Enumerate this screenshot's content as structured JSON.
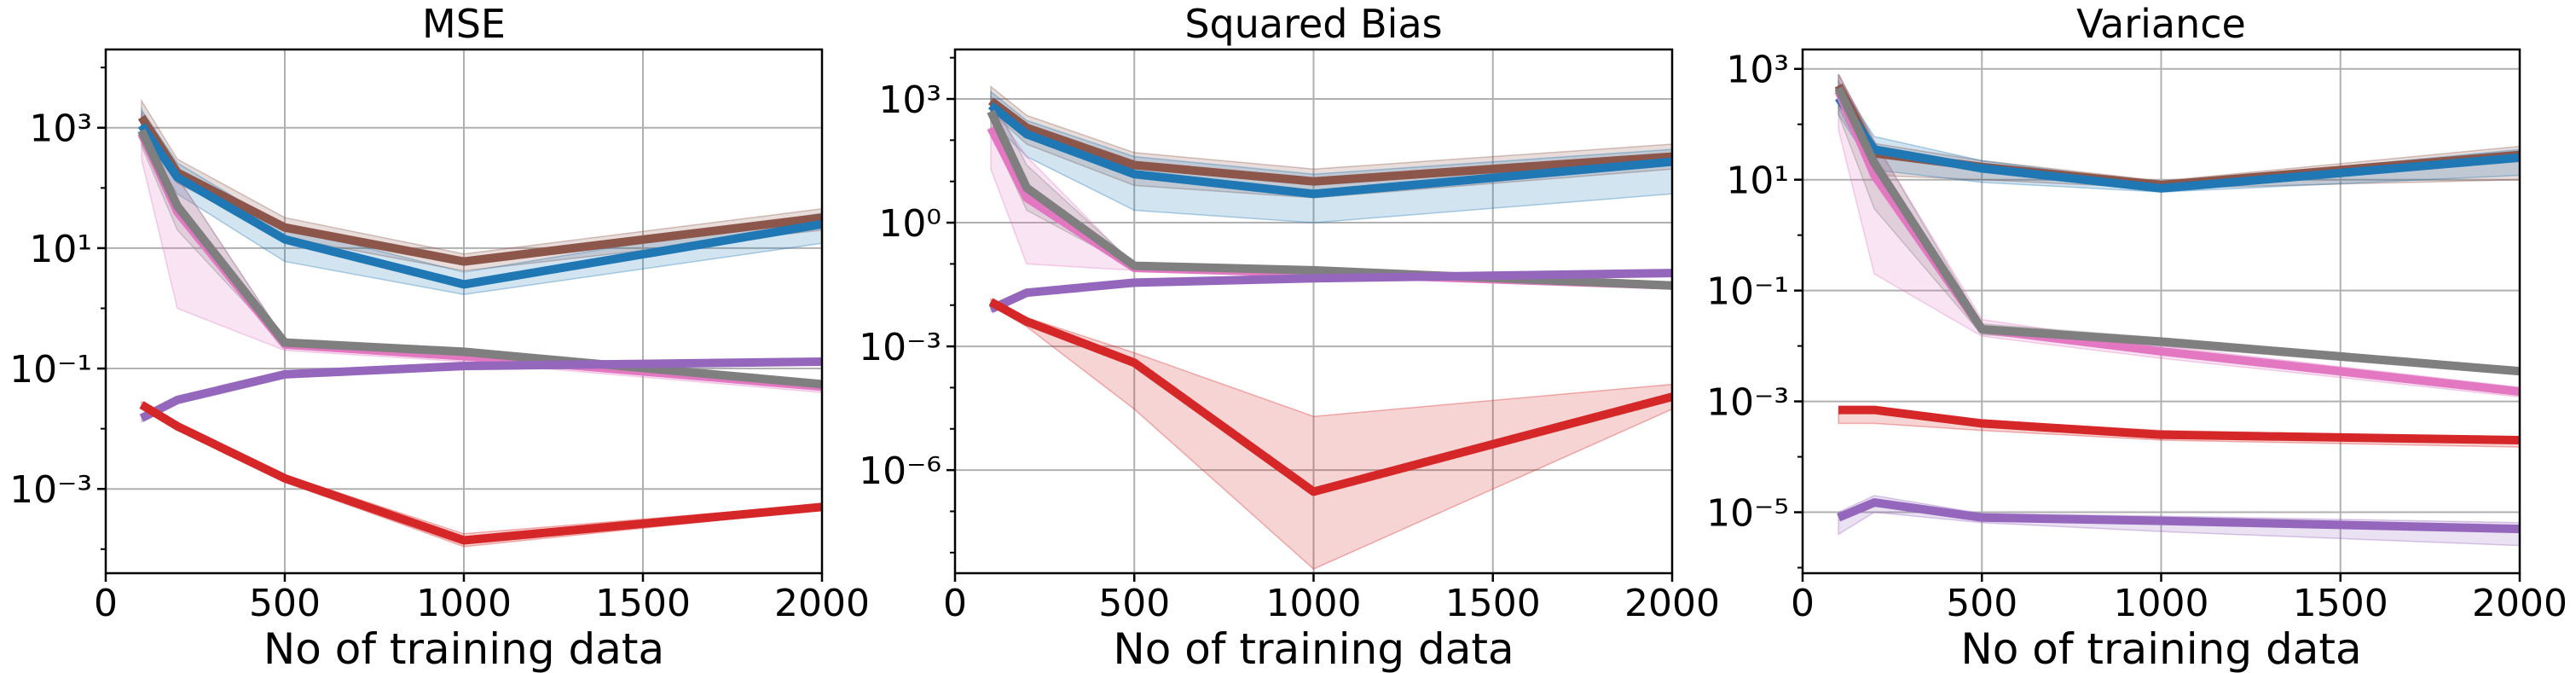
{
  "chart_data": [
    {
      "type": "line",
      "title": "MSE",
      "xlabel": "No of training data",
      "ylabel": "",
      "xlim": [
        0,
        2000
      ],
      "ylim_log10": [
        -4.4,
        4.3
      ],
      "yscale": "log",
      "grid": true,
      "x_ticks": [
        0,
        500,
        1000,
        1500,
        2000
      ],
      "x_tick_labels": [
        "0",
        "500",
        "1000",
        "1500",
        "2000"
      ],
      "y_ticks_log10": [
        -3,
        -1,
        1,
        3
      ],
      "x": [
        100,
        200,
        500,
        1000,
        2000
      ],
      "series": [
        {
          "color": "#8c564b",
          "values": [
            1500,
            180,
            22,
            6,
            32
          ],
          "lower": [
            900,
            120,
            15,
            4.2,
            20
          ],
          "upper": [
            2800,
            300,
            32,
            8,
            45
          ]
        },
        {
          "color": "#1f77b4",
          "values": [
            1100,
            150,
            14,
            2.5,
            25
          ],
          "lower": [
            700,
            80,
            6,
            1.7,
            12
          ],
          "upper": [
            2000,
            260,
            22,
            4,
            38
          ]
        },
        {
          "color": "#e377c2",
          "values": [
            800,
            40,
            0.25,
            0.16,
            0.05
          ],
          "lower": [
            300,
            1.0,
            0.2,
            0.13,
            0.04
          ],
          "upper": [
            1800,
            150,
            0.3,
            0.19,
            0.06
          ]
        },
        {
          "color": "#7f7f7f",
          "values": [
            900,
            50,
            0.27,
            0.19,
            0.055
          ],
          "lower": [
            500,
            20,
            0.24,
            0.17,
            0.05
          ],
          "upper": [
            1800,
            150,
            0.3,
            0.21,
            0.06
          ]
        },
        {
          "color": "#9467bd",
          "values": [
            0.015,
            0.03,
            0.08,
            0.11,
            0.13
          ],
          "lower": [
            0.013,
            0.028,
            0.076,
            0.105,
            0.125
          ],
          "upper": [
            0.017,
            0.032,
            0.084,
            0.115,
            0.135
          ]
        },
        {
          "color": "#d62728",
          "values": [
            0.025,
            0.011,
            0.0015,
            0.00014,
            0.0005
          ],
          "lower": [
            0.022,
            0.01,
            0.0013,
            0.00011,
            0.00045
          ],
          "upper": [
            0.028,
            0.012,
            0.0017,
            0.00018,
            0.00055
          ]
        }
      ]
    },
    {
      "type": "line",
      "title": "Squared Bias",
      "xlabel": "No of training data",
      "ylabel": "",
      "xlim": [
        0,
        2000
      ],
      "ylim_log10": [
        -8.5,
        4.2
      ],
      "yscale": "log",
      "grid": true,
      "x_ticks": [
        0,
        500,
        1000,
        1500,
        2000
      ],
      "x_tick_labels": [
        "0",
        "500",
        "1000",
        "1500",
        "2000"
      ],
      "y_ticks_log10": [
        -6,
        -3,
        0,
        3
      ],
      "x": [
        100,
        200,
        500,
        1000,
        2000
      ],
      "series": [
        {
          "color": "#8c564b",
          "values": [
            900,
            200,
            25,
            10,
            40
          ],
          "lower": [
            500,
            80,
            8,
            4,
            20
          ],
          "upper": [
            2000,
            400,
            50,
            20,
            80
          ]
        },
        {
          "color": "#1f77b4",
          "values": [
            700,
            140,
            15,
            5,
            30
          ],
          "lower": [
            300,
            40,
            2,
            1,
            5
          ],
          "upper": [
            1500,
            300,
            40,
            15,
            60
          ]
        },
        {
          "color": "#e377c2",
          "values": [
            200,
            4,
            0.08,
            0.06,
            0.03
          ],
          "lower": [
            20,
            0.1,
            0.07,
            0.05,
            0.025
          ],
          "upper": [
            700,
            40,
            0.09,
            0.07,
            0.035
          ]
        },
        {
          "color": "#7f7f7f",
          "values": [
            500,
            7,
            0.09,
            0.07,
            0.03
          ],
          "lower": [
            150,
            2,
            0.08,
            0.06,
            0.025
          ],
          "upper": [
            1200,
            25,
            0.1,
            0.08,
            0.035
          ]
        },
        {
          "color": "#9467bd",
          "values": [
            0.008,
            0.02,
            0.035,
            0.045,
            0.06
          ],
          "lower": [
            0.007,
            0.018,
            0.032,
            0.042,
            0.056
          ],
          "upper": [
            0.009,
            0.022,
            0.038,
            0.048,
            0.064
          ]
        },
        {
          "color": "#d62728",
          "values": [
            0.012,
            0.004,
            0.0004,
            3e-07,
            6e-05
          ],
          "lower": [
            0.01,
            0.003,
            3e-05,
            4e-09,
            3e-05
          ],
          "upper": [
            0.014,
            0.005,
            0.0007,
            2e-05,
            0.00012
          ]
        }
      ]
    },
    {
      "type": "line",
      "title": "Variance",
      "xlabel": "No of training data",
      "ylabel": "",
      "xlim": [
        0,
        2000
      ],
      "ylim_log10": [
        -6.1,
        3.35
      ],
      "yscale": "log",
      "grid": true,
      "x_ticks": [
        0,
        500,
        1000,
        1500,
        2000
      ],
      "x_tick_labels": [
        "0",
        "500",
        "1000",
        "1500",
        "2000"
      ],
      "y_ticks_log10": [
        -5,
        -3,
        -1,
        1,
        3
      ],
      "x": [
        100,
        200,
        500,
        1000,
        2000
      ],
      "series": [
        {
          "color": "#8c564b",
          "values": [
            500,
            30,
            17,
            8,
            28
          ],
          "lower": [
            200,
            12,
            10,
            7,
            10
          ],
          "upper": [
            800,
            45,
            22,
            9.5,
            40
          ]
        },
        {
          "color": "#1f77b4",
          "values": [
            300,
            35,
            16,
            7,
            25
          ],
          "lower": [
            150,
            15,
            9,
            6,
            12
          ],
          "upper": [
            600,
            60,
            22,
            8.5,
            35
          ]
        },
        {
          "color": "#e377c2",
          "values": [
            400,
            12,
            0.02,
            0.008,
            0.0015
          ],
          "lower": [
            80,
            0.2,
            0.015,
            0.006,
            0.0012
          ],
          "upper": [
            800,
            50,
            0.03,
            0.01,
            0.0018
          ]
        },
        {
          "color": "#7f7f7f",
          "values": [
            450,
            20,
            0.02,
            0.012,
            0.0035
          ],
          "lower": [
            150,
            3,
            0.016,
            0.01,
            0.003
          ],
          "upper": [
            800,
            50,
            0.025,
            0.014,
            0.004
          ]
        },
        {
          "color": "#9467bd",
          "values": [
            8e-06,
            1.5e-05,
            8e-06,
            7e-06,
            5e-06
          ],
          "lower": [
            4e-06,
            1e-05,
            6.5e-06,
            4.5e-06,
            2.5e-06
          ],
          "upper": [
            1e-05,
            2e-05,
            9.5e-06,
            8.5e-06,
            6.5e-06
          ]
        },
        {
          "color": "#d62728",
          "values": [
            0.0007,
            0.0007,
            0.0004,
            0.00025,
            0.0002
          ],
          "lower": [
            0.0004,
            0.0004,
            0.0003,
            0.0002,
            0.00015
          ],
          "upper": [
            0.00075,
            0.00075,
            0.00045,
            0.0003,
            0.00022
          ]
        }
      ]
    }
  ]
}
